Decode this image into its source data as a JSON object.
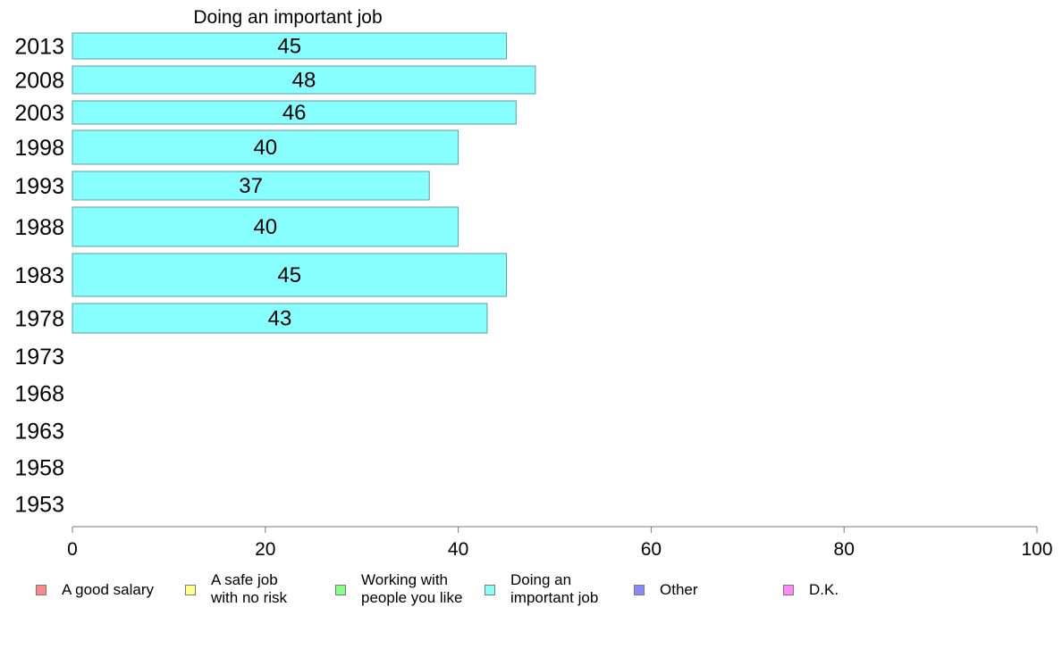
{
  "chart_data": {
    "type": "bar",
    "orientation": "horizontal",
    "title": "Doing an important job",
    "categories": [
      "2013",
      "2008",
      "2003",
      "1998",
      "1993",
      "1988",
      "1983",
      "1978",
      "1973",
      "1968",
      "1963",
      "1958",
      "1953"
    ],
    "series": [
      {
        "name": "Doing an important job",
        "values": [
          45,
          48,
          46,
          40,
          37,
          40,
          45,
          43,
          null,
          null,
          null,
          null,
          null
        ]
      }
    ],
    "value_labels": [
      "45",
      "48",
      "46",
      "40",
      "37",
      "40",
      "45",
      "43",
      "",
      "",
      "",
      "",
      ""
    ],
    "xlim": [
      0,
      100
    ],
    "xticks": [
      "0",
      "20",
      "40",
      "60",
      "80",
      "100"
    ],
    "xlabel": "",
    "ylabel": "",
    "grid": false,
    "legend_position": "bottom",
    "bar_color": "#88ffff",
    "bar_edge_color": "#5f9ea0"
  },
  "legend": {
    "items": [
      {
        "label": "A good salary",
        "color": "#ff8888"
      },
      {
        "label": "A safe job\nwith no risk",
        "color": "#ffff88"
      },
      {
        "label": "Working with\npeople you like",
        "color": "#88ff88"
      },
      {
        "label": "Doing an\nimportant job",
        "color": "#88ffff"
      },
      {
        "label": "Other",
        "color": "#8888ff"
      },
      {
        "label": "D.K.",
        "color": "#ff88ff"
      }
    ]
  }
}
